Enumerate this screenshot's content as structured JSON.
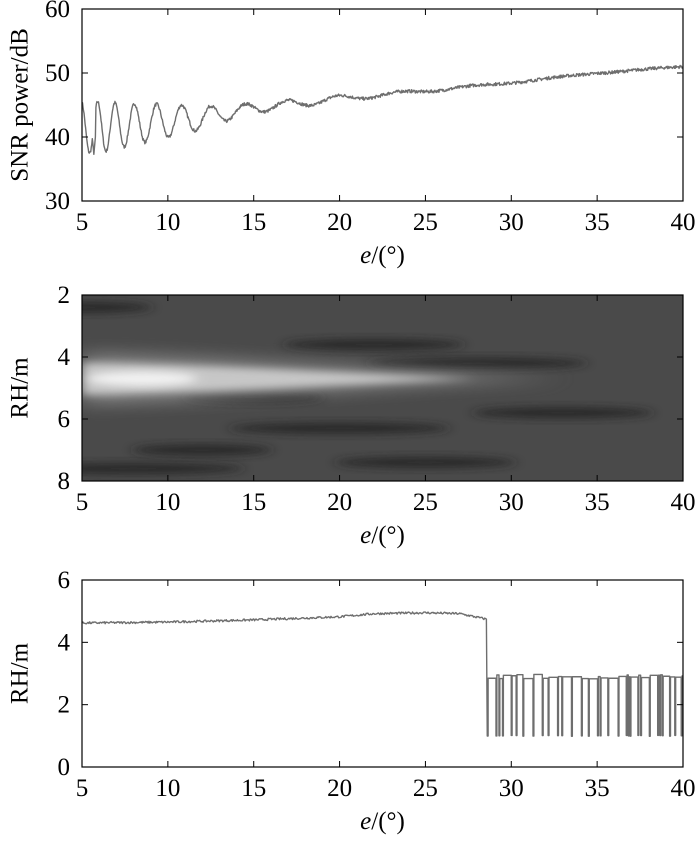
{
  "chart_data": [
    {
      "type": "line",
      "xlabel_italic": "e",
      "xlabel_rest": "/(°)",
      "ylabel": "SNR power/dB",
      "xlim": [
        5,
        40
      ],
      "ylim": [
        30,
        60
      ],
      "xticks": [
        "5",
        "10",
        "15",
        "20",
        "25",
        "30",
        "35",
        "40"
      ],
      "yticks": [
        "30",
        "40",
        "50",
        "60"
      ],
      "grid": false,
      "series": [
        {
          "color": "#6e6e6e",
          "trend": {
            "x": [
              5,
              6,
              8,
              10,
              12,
              15,
              20,
              25,
              30,
              35,
              40
            ],
            "y": [
              41.5,
              41.5,
              42,
              42.5,
              43,
              44.5,
              46,
              47.2,
              48.5,
              50,
              51
            ]
          },
          "oscillation": {
            "x": [
              5,
              6,
              8,
              10,
              12,
              14,
              16,
              18,
              20,
              22,
              25,
              30,
              40
            ],
            "amplitude": [
              4,
              4,
              3.2,
              2.6,
              1.8,
              1.0,
              0.7,
              0.6,
              0.5,
              0.35,
              0.2,
              0.1,
              0.05
            ],
            "period": [
              0.95,
              0.95,
              1.2,
              1.45,
              1.75,
              2.1,
              2.5,
              2.9,
              3.3,
              3.7,
              4.2,
              5,
              6
            ]
          },
          "minimum": {
            "x": 5.7,
            "y": 37.3
          }
        }
      ]
    },
    {
      "type": "heatmap",
      "xlabel_italic": "e",
      "xlabel_rest": "/(°)",
      "ylabel": "RH/m",
      "xlim": [
        5,
        40
      ],
      "ylim": [
        8,
        2
      ],
      "xticks": [
        "5",
        "10",
        "15",
        "20",
        "25",
        "30",
        "35",
        "40"
      ],
      "yticks": [
        "2",
        "4",
        "6",
        "8"
      ],
      "colormap": "gray",
      "background_color": "#4a4a4a",
      "peak_band": {
        "rh": 4.7,
        "brightest_x": [
          7,
          10
        ],
        "fades_by_x": 33
      },
      "dark_bands": [
        {
          "x": 5,
          "y": 2.4
        },
        {
          "x": 22,
          "y": 3.6
        },
        {
          "x": 28,
          "y": 4.2
        },
        {
          "x": 15,
          "y": 5.3
        },
        {
          "x": 33,
          "y": 5.8
        },
        {
          "x": 20,
          "y": 6.3
        },
        {
          "x": 12,
          "y": 7.0
        },
        {
          "x": 25,
          "y": 7.4
        },
        {
          "x": 8,
          "y": 7.6
        }
      ]
    },
    {
      "type": "line",
      "xlabel_italic": "e",
      "xlabel_rest": "/(°)",
      "ylabel": "RH/m",
      "xlim": [
        5,
        40
      ],
      "ylim": [
        0,
        6
      ],
      "xticks": [
        "5",
        "10",
        "15",
        "20",
        "25",
        "30",
        "35",
        "40"
      ],
      "yticks": [
        "0",
        "2",
        "4",
        "6"
      ],
      "grid": false,
      "series": [
        {
          "color": "#6e6e6e",
          "stable": {
            "x": [
              5,
              10,
              15,
              20,
              22,
              25,
              27,
              28.5
            ],
            "y": [
              4.62,
              4.65,
              4.72,
              4.82,
              4.92,
              4.95,
              4.92,
              4.75
            ]
          },
          "switch_x": 28.6,
          "levels": {
            "high": 2.9,
            "low": 1.0
          },
          "high_transient": 4.75
        }
      ]
    }
  ]
}
